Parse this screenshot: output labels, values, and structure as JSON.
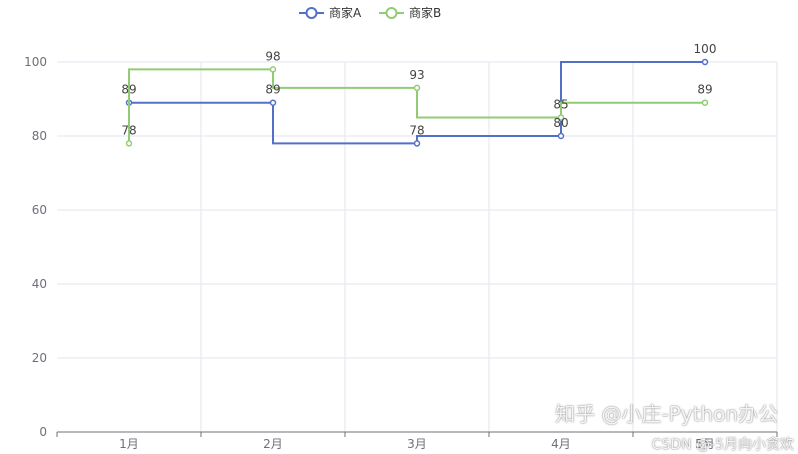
{
  "chart_data": {
    "type": "line",
    "step": true,
    "categories": [
      "1月",
      "2月",
      "3月",
      "4月",
      "5月"
    ],
    "series": [
      {
        "name": "商家A",
        "values": [
          89,
          89,
          78,
          80,
          100
        ],
        "color": "#5470c6"
      },
      {
        "name": "商家B",
        "values": [
          78,
          98,
          93,
          85,
          89
        ],
        "color": "#91cc75"
      }
    ],
    "ylim": [
      0,
      100
    ],
    "yticks": [
      0,
      20,
      40,
      60,
      80,
      100
    ],
    "grid": true,
    "legend": "top-center",
    "data_labels": true
  },
  "watermarks": {
    "zhihu": "知乎 @小庄-Python办公",
    "csdn": "CSDN @-5月向小贪欢"
  }
}
